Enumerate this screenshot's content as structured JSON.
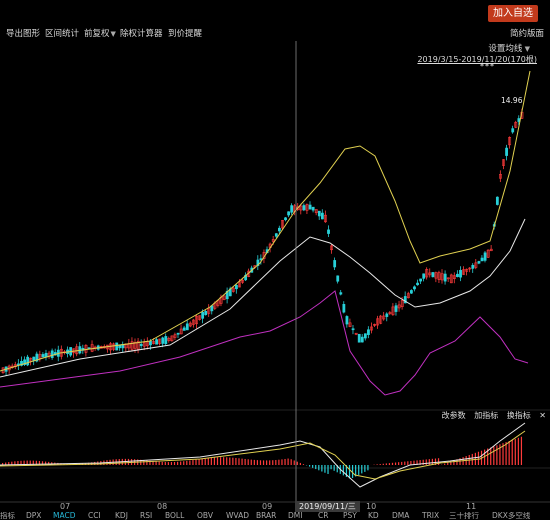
{
  "topbar": {
    "add_button": "加入自选"
  },
  "toolbar": {
    "items": [
      "导出图形",
      "区间统计",
      "前复权",
      "除权计算器",
      "到价提醒"
    ],
    "simple_view": "简约版面"
  },
  "chart": {
    "ma_setting": "设置均线",
    "date_range": "2019/3/15-2019/11/20(170根)",
    "stars": "***",
    "price_label": "14.96",
    "colors": {
      "up": "#ff3b3b",
      "down": "#28d0d8",
      "ma1": "#e0d050",
      "ma2": "#e8e8e8",
      "ma3": "#c030c0"
    }
  },
  "indicator_bar": {
    "items": [
      "改参数",
      "加指标",
      "换指标"
    ],
    "close": "✕"
  },
  "axis": {
    "months": [
      "07",
      "08",
      "09",
      "10",
      "11"
    ],
    "cursor_date": "2019/09/11/三"
  },
  "bottom_tabs": {
    "items": [
      "指标",
      "DPX",
      "MACD",
      "CCI",
      "KDJ",
      "RSI",
      "BOLL",
      "OBV",
      "WVAD",
      "BRAR",
      "DMI",
      "CR",
      "PSY",
      "KD",
      "DMA",
      "TRIX",
      "三十排行",
      "DKX多空线"
    ],
    "active": "MACD"
  }
}
